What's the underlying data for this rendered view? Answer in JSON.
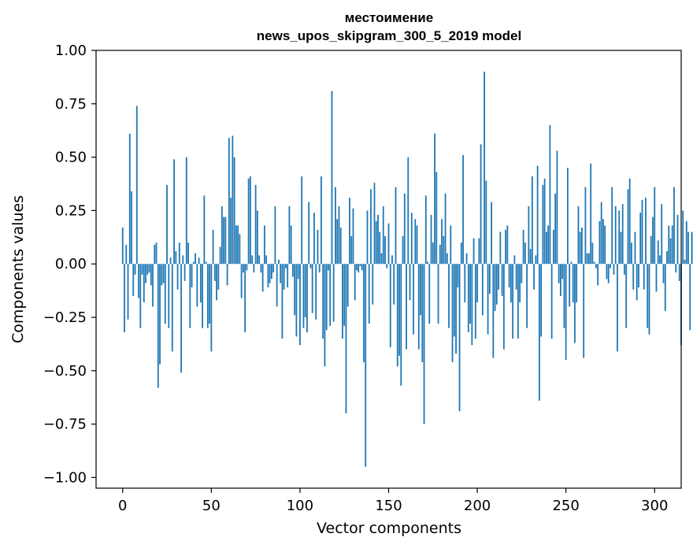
{
  "chart_data": {
    "type": "bar",
    "title": [
      "местоимение",
      "news_upos_skipgram_300_5_2019 model"
    ],
    "xlabel": "Vector components",
    "ylabel": "Components values",
    "xlim": [
      -15,
      315
    ],
    "ylim": [
      -1.05,
      1.0
    ],
    "xticks": [
      0,
      50,
      100,
      150,
      200,
      250,
      300
    ],
    "yticks": [
      -1.0,
      -0.75,
      -0.5,
      -0.25,
      0.0,
      0.25,
      0.5,
      0.75,
      1.0
    ],
    "ytick_labels": [
      "−1.00",
      "−0.75",
      "−0.50",
      "−0.25",
      "0.00",
      "0.25",
      "0.50",
      "0.75",
      "1.00"
    ],
    "bar_color": "#1f77b4",
    "grid": false,
    "series": [
      {
        "name": "местоимение",
        "values": [
          0.17,
          -0.32,
          0.09,
          -0.26,
          0.61,
          0.34,
          -0.15,
          -0.05,
          0.74,
          -0.16,
          -0.3,
          -0.05,
          -0.18,
          -0.09,
          -0.05,
          -0.04,
          -0.1,
          -0.2,
          0.09,
          0.1,
          -0.58,
          -0.47,
          -0.1,
          -0.09,
          -0.28,
          0.37,
          -0.3,
          0.03,
          -0.41,
          0.49,
          0.06,
          -0.12,
          0.1,
          -0.51,
          0.04,
          -0.08,
          0.5,
          0.1,
          -0.3,
          -0.11,
          0.01,
          0.05,
          -0.2,
          0.03,
          -0.18,
          -0.3,
          0.32,
          0.01,
          -0.3,
          -0.28,
          -0.41,
          0.16,
          -0.08,
          -0.17,
          -0.12,
          0.08,
          0.27,
          0.22,
          0.22,
          -0.1,
          0.59,
          0.31,
          0.6,
          0.5,
          0.18,
          0.18,
          0.14,
          -0.16,
          -0.04,
          -0.32,
          -0.03,
          0.4,
          0.41,
          0.04,
          -0.04,
          0.37,
          0.25,
          0.04,
          -0.04,
          -0.13,
          0.18,
          0.04,
          -0.11,
          -0.09,
          -0.07,
          -0.04,
          0.27,
          -0.2,
          0.02,
          -0.09,
          -0.35,
          -0.12,
          -0.02,
          -0.11,
          0.27,
          0.18,
          -0.06,
          -0.24,
          -0.34,
          -0.07,
          -0.38,
          0.41,
          -0.3,
          -0.25,
          -0.32,
          0.29,
          -0.02,
          -0.23,
          0.24,
          -0.26,
          0.16,
          -0.04,
          0.41,
          -0.35,
          -0.48,
          -0.31,
          -0.03,
          -0.29,
          0.81,
          -0.27,
          0.36,
          0.21,
          0.27,
          0.17,
          -0.35,
          -0.29,
          -0.7,
          -0.2,
          0.31,
          0.13,
          0.26,
          -0.17,
          -0.03,
          -0.04,
          -0.01,
          -0.03,
          -0.46,
          -0.95,
          0.25,
          -0.28,
          0.35,
          -0.19,
          0.38,
          0.2,
          0.23,
          0.15,
          0.05,
          0.27,
          0.13,
          -0.02,
          0.19,
          -0.39,
          0.04,
          -0.19,
          0.36,
          -0.48,
          -0.43,
          -0.57,
          0.13,
          0.33,
          -0.4,
          0.5,
          -0.17,
          0.24,
          -0.33,
          0.21,
          0.18,
          -0.4,
          -0.24,
          -0.46,
          -0.75,
          0.32,
          0.01,
          -0.28,
          0.23,
          0.1,
          0.61,
          0.43,
          -0.28,
          0.09,
          0.21,
          0.13,
          0.33,
          0.05,
          -0.3,
          0.18,
          -0.46,
          -0.34,
          -0.42,
          -0.11,
          -0.69,
          0.1,
          0.51,
          -0.18,
          0.05,
          -0.32,
          -0.28,
          -0.38,
          0.12,
          -0.35,
          -0.18,
          0.12,
          0.56,
          -0.24,
          0.9,
          0.39,
          -0.33,
          -0.14,
          0.29,
          -0.44,
          -0.22,
          -0.19,
          -0.12,
          0.15,
          -0.15,
          -0.4,
          0.16,
          0.18,
          -0.11,
          -0.18,
          -0.35,
          0.04,
          -0.12,
          -0.35,
          -0.18,
          -0.09,
          0.16,
          0.1,
          -0.3,
          0.27,
          0.07,
          0.41,
          -0.12,
          0.04,
          0.46,
          -0.64,
          -0.34,
          0.37,
          0.4,
          0.15,
          0.18,
          0.65,
          -0.35,
          0.16,
          0.33,
          0.53,
          -0.09,
          -0.15,
          -0.07,
          -0.3,
          -0.45,
          0.45,
          -0.2,
          0.01,
          -0.18,
          -0.37,
          -0.18,
          0.27,
          0.15,
          0.17,
          -0.44,
          0.36,
          0.05,
          0.05,
          0.47,
          0.1,
          0.01,
          -0.02,
          -0.1,
          0.2,
          0.29,
          0.21,
          0.18,
          -0.07,
          -0.09,
          -0.02,
          0.36,
          -0.05,
          0.27,
          -0.41,
          0.25,
          0.15,
          0.28,
          -0.05,
          -0.3,
          0.35,
          0.4,
          0.1,
          -0.12,
          0.15,
          -0.17,
          -0.11,
          0.24,
          0.3,
          -0.12,
          0.31,
          -0.3,
          -0.33,
          0.13,
          0.22,
          0.36,
          -0.13,
          0.11,
          0.04,
          0.28,
          -0.09,
          -0.22,
          0.06,
          0.18,
          0.12,
          0.18,
          0.36,
          -0.04,
          0.23,
          -0.08,
          -0.38,
          0.25,
          0.02,
          0.2,
          0.15,
          -0.31,
          0.15,
          0.14
        ]
      }
    ]
  }
}
